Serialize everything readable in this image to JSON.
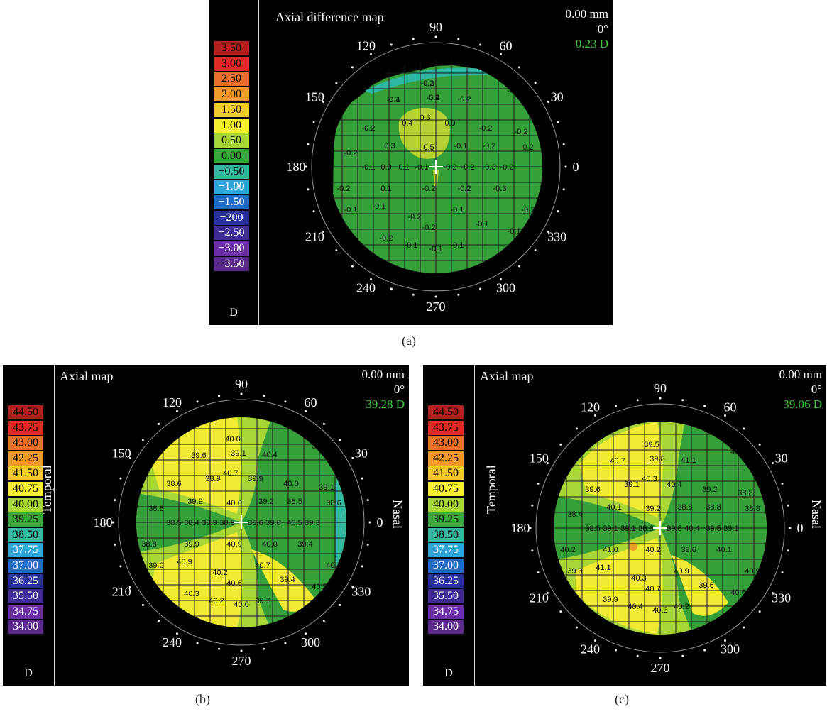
{
  "panels": [
    {
      "id": "a",
      "title": "Axial difference map",
      "readout": {
        "mm": "0.00 mm",
        "deg": "0°",
        "value": "0.23 D"
      },
      "unit": "D",
      "legend": [
        "3.50",
        "3.00",
        "2.50",
        "2.00",
        "1.50",
        "1.00",
        "0.50",
        "0.00",
        "−0.50",
        "−1.00",
        "−1.50",
        "−200",
        "−2.50",
        "−3.00",
        "−3.50"
      ],
      "legend_colors": [
        "#b3201f",
        "#e02a25",
        "#e9702a",
        "#f09a2a",
        "#f4c92c",
        "#f6ee31",
        "#a8d636",
        "#3aa93d",
        "#35b8a0",
        "#2fa6d8",
        "#1f6cc8",
        "#2a2f9e",
        "#3f2a96",
        "#6a2fa6",
        "#5a2a8a"
      ],
      "side_left": "",
      "side_right": "",
      "angles": [
        "90",
        "60",
        "30",
        "0",
        "330",
        "300",
        "270",
        "240",
        "210",
        "180",
        "150",
        "120"
      ],
      "values": [
        "-0.3",
        "-0.4",
        "-0.4",
        "-0.2",
        "-0.2",
        "-0.3",
        "0.4",
        "0.3",
        "0.0",
        "-0.2",
        "-0.2",
        "-0.2",
        "0.3",
        "0.5",
        "-0.1",
        "-0.2",
        "0.2",
        "-0.2",
        "-0.1",
        "0.0",
        "0.1",
        "-0.1",
        "-0.2",
        "-0.2",
        "-0.3",
        "-0.2",
        "-0.2",
        "0.1",
        "-0.2",
        "-0.2",
        "-0.3",
        "-0.2",
        "-0.1",
        "-0.1",
        "-0.2",
        "-0.2",
        "-0.1",
        "-0.1",
        "-0.1",
        "-0.2",
        "-0.1",
        "-0.1",
        "-0.1",
        "-0.2",
        "-0.1",
        "-0.2"
      ],
      "caption": "(a)"
    },
    {
      "id": "b",
      "title": "Axial map",
      "readout": {
        "mm": "0.00 mm",
        "deg": "0°",
        "value": "39.28 D"
      },
      "unit": "D",
      "legend": [
        "44.50",
        "43.75",
        "43.00",
        "42.25",
        "41.50",
        "40.75",
        "40.00",
        "39.25",
        "38.50",
        "37.75",
        "37.00",
        "36.25",
        "35.50",
        "34.75",
        "34.00"
      ],
      "legend_colors": [
        "#b3201f",
        "#e02a25",
        "#e9702a",
        "#f09a2a",
        "#f4c92c",
        "#f6ee31",
        "#a8d636",
        "#3aa93d",
        "#35b8a0",
        "#2fa6d8",
        "#1f6cc8",
        "#2a2f9e",
        "#3f2a96",
        "#6a2fa6",
        "#5a2a8a"
      ],
      "side_left": "Temporal",
      "side_right": "Nasal",
      "angles": [
        "90",
        "60",
        "30",
        "0",
        "330",
        "300",
        "270",
        "240",
        "210",
        "180",
        "150",
        "120"
      ],
      "values": [
        "40.0",
        "39.6",
        "39.1",
        "40.4",
        "39.6",
        "40.8",
        "38.9",
        "40.7",
        "39.9",
        "40.0",
        "39.1",
        "38.6",
        "39.9",
        "40.6",
        "39.2",
        "38.5",
        "38.6",
        "38.8",
        "38.5",
        "38.4",
        "38.9",
        "38.9",
        "38.6",
        "39.8",
        "40.5",
        "39.3",
        "38.8",
        "39.9",
        "40.9",
        "40.0",
        "39.4",
        "40.7",
        "39.0",
        "40.9",
        "40.2",
        "40.6",
        "40.7",
        "39.4",
        "40.5",
        "40.3",
        "40.2",
        "40.0",
        "39.7"
      ],
      "caption": "(b)"
    },
    {
      "id": "c",
      "title": "Axial map",
      "readout": {
        "mm": "0.00 mm",
        "deg": "0°",
        "value": "39.06 D"
      },
      "unit": "D",
      "legend": [
        "44.50",
        "43.75",
        "43.00",
        "42.25",
        "41.50",
        "40.75",
        "40.00",
        "39.25",
        "38.50",
        "37.75",
        "37.00",
        "36.25",
        "35.50",
        "34.75",
        "34.00"
      ],
      "legend_colors": [
        "#b3201f",
        "#e02a25",
        "#e9702a",
        "#f09a2a",
        "#f4c92c",
        "#f6ee31",
        "#a8d636",
        "#3aa93d",
        "#35b8a0",
        "#2fa6d8",
        "#1f6cc8",
        "#2a2f9e",
        "#3f2a96",
        "#6a2fa6",
        "#5a2a8a"
      ],
      "side_left": "Temporal",
      "side_right": "Nasal",
      "angles": [
        "90",
        "60",
        "30",
        "0",
        "330",
        "300",
        "270",
        "240",
        "210",
        "180",
        "150",
        "120"
      ],
      "values": [
        "39.5",
        "40.7",
        "39.8",
        "41.1",
        "40.4",
        "39.8",
        "39.1",
        "40.3",
        "40.4",
        "39.2",
        "38.8",
        "39.6",
        "40.1",
        "39.2",
        "38.8",
        "38.8",
        "38.8",
        "38.4",
        "38.5",
        "39.1",
        "39.1",
        "38.8",
        "39.8",
        "40.4",
        "39.5",
        "39.1",
        "40.2",
        "41.0",
        "40.2",
        "39.6",
        "40.1",
        "40.9",
        "39.3",
        "41.1",
        "40.3",
        "40.7",
        "40.9",
        "39.6",
        "40.6",
        "39.9",
        "40.4",
        "40.3",
        "40.2"
      ],
      "caption": "(c)"
    }
  ]
}
